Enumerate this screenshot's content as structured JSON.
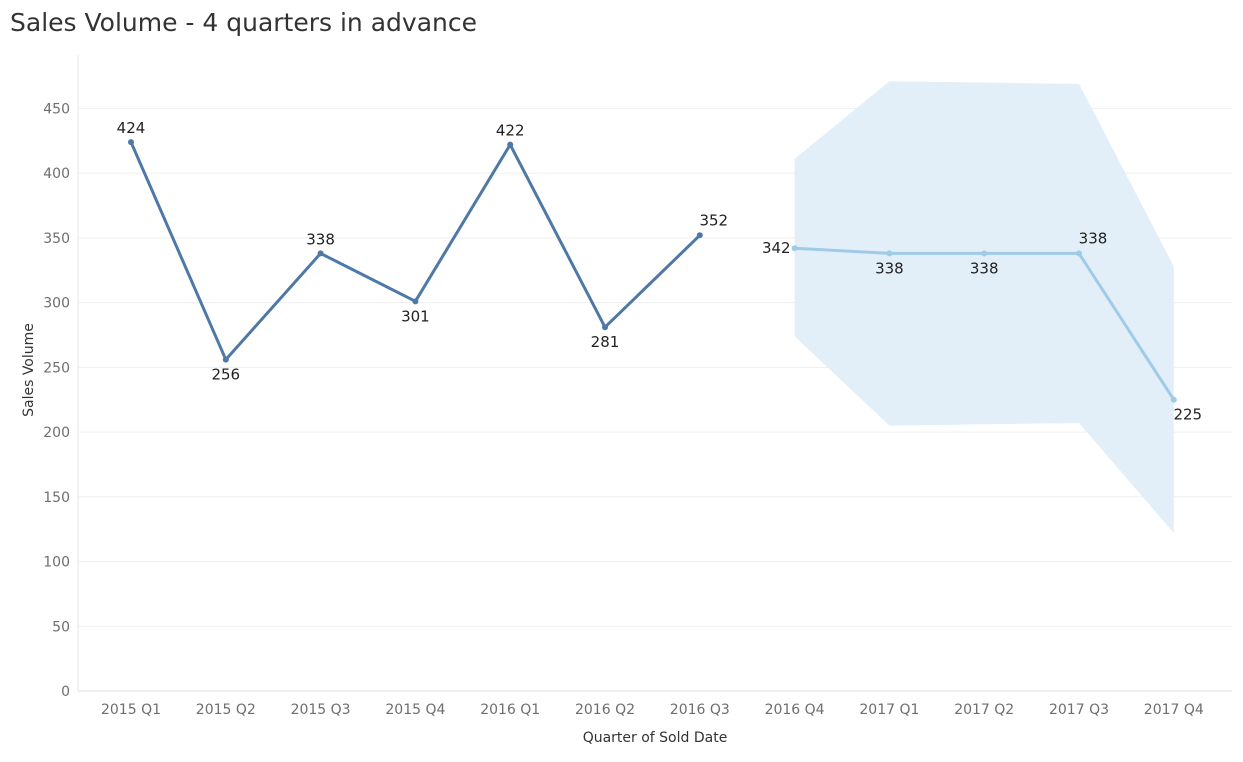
{
  "chart_data": {
    "type": "line",
    "title": "Sales Volume - 4 quarters in advance",
    "xlabel": "Quarter of Sold Date",
    "ylabel": "Sales Volume",
    "ylim": [
      0,
      475
    ],
    "yticks": [
      0,
      50,
      100,
      150,
      200,
      250,
      300,
      350,
      400,
      450
    ],
    "categories": [
      "2015 Q1",
      "2015 Q2",
      "2015 Q3",
      "2015 Q4",
      "2016 Q1",
      "2016 Q2",
      "2016 Q3",
      "2016 Q4",
      "2017 Q1",
      "2017 Q2",
      "2017 Q3",
      "2017 Q4"
    ],
    "grid": true,
    "series": [
      {
        "color": "#4e79a7",
        "points": [
          {
            "x": "2015 Q1",
            "y": 424
          },
          {
            "x": "2015 Q2",
            "y": 256
          },
          {
            "x": "2015 Q3",
            "y": 338
          },
          {
            "x": "2015 Q4",
            "y": 301
          },
          {
            "x": "2016 Q1",
            "y": 422
          },
          {
            "x": "2016 Q2",
            "y": 281
          },
          {
            "x": "2016 Q3",
            "y": 352
          }
        ]
      },
      {
        "color": "#a0cbe8",
        "points": [
          {
            "x": "2016 Q4",
            "y": 342
          },
          {
            "x": "2017 Q1",
            "y": 338
          },
          {
            "x": "2017 Q2",
            "y": 338
          },
          {
            "x": "2017 Q3",
            "y": 338
          },
          {
            "x": "2017 Q4",
            "y": 225
          }
        ]
      }
    ],
    "band": {
      "color": "#e3eff8",
      "points": [
        {
          "x": "2016 Q4",
          "low": 274,
          "high": 411
        },
        {
          "x": "2017 Q1",
          "low": 205,
          "high": 471
        },
        {
          "x": "2017 Q3",
          "low": 207,
          "high": 469
        },
        {
          "x": "2017 Q4",
          "low": 122,
          "high": 328
        }
      ]
    },
    "labels": [
      {
        "x": "2015 Q1",
        "y": 424,
        "text": "424",
        "pos": "above"
      },
      {
        "x": "2015 Q2",
        "y": 256,
        "text": "256",
        "pos": "below"
      },
      {
        "x": "2015 Q3",
        "y": 338,
        "text": "338",
        "pos": "above"
      },
      {
        "x": "2015 Q4",
        "y": 301,
        "text": "301",
        "pos": "below"
      },
      {
        "x": "2016 Q1",
        "y": 422,
        "text": "422",
        "pos": "above"
      },
      {
        "x": "2016 Q2",
        "y": 281,
        "text": "281",
        "pos": "below"
      },
      {
        "x": "2016 Q3",
        "y": 352,
        "text": "352",
        "pos": "above-right"
      },
      {
        "x": "2016 Q4",
        "y": 342,
        "text": "342",
        "pos": "left"
      },
      {
        "x": "2017 Q1",
        "y": 338,
        "text": "338",
        "pos": "below"
      },
      {
        "x": "2017 Q2",
        "y": 338,
        "text": "338",
        "pos": "below"
      },
      {
        "x": "2017 Q3",
        "y": 338,
        "text": "338",
        "pos": "above-right"
      },
      {
        "x": "2017 Q4",
        "y": 225,
        "text": "225",
        "pos": "below-right"
      }
    ]
  }
}
